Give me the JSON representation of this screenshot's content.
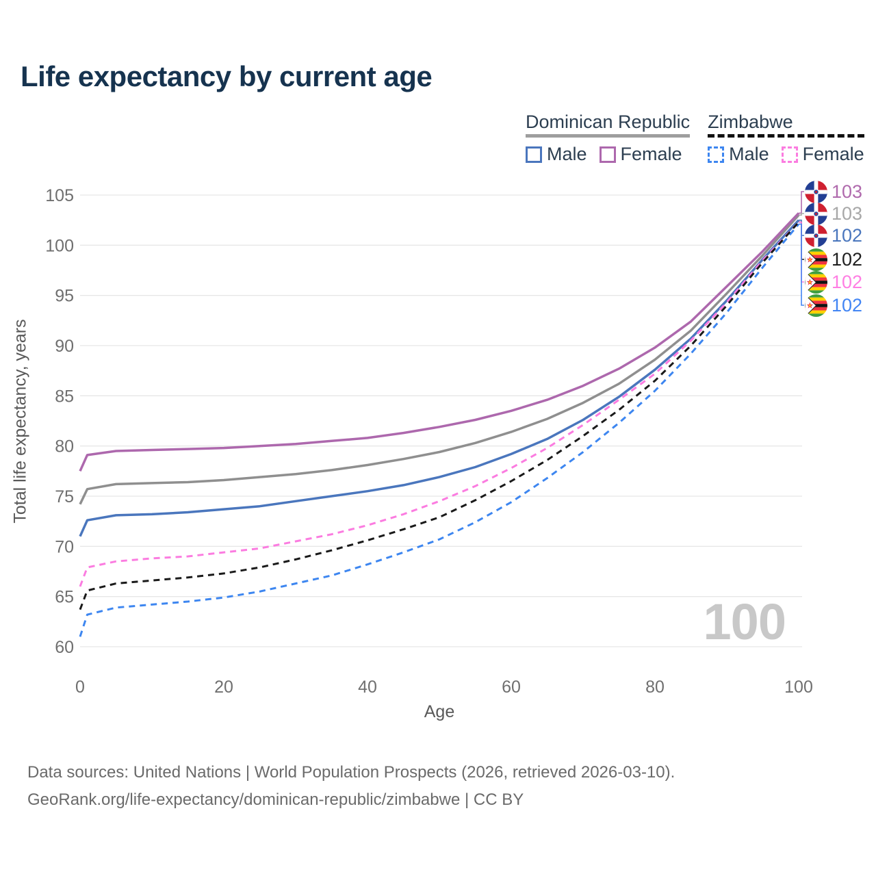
{
  "title": "Life expectancy by current age",
  "watermark": "100",
  "legend": {
    "dr": {
      "label": "Dominican Republic",
      "male": "Male",
      "female": "Female"
    },
    "zw": {
      "label": "Zimbabwe",
      "male": "Male",
      "female": "Female"
    }
  },
  "y_axis": {
    "label": "Total life expectancy, years",
    "ticks": [
      60,
      65,
      70,
      75,
      80,
      85,
      90,
      95,
      100,
      105
    ]
  },
  "x_axis": {
    "label": "Age",
    "ticks": [
      0,
      20,
      40,
      60,
      80,
      100
    ]
  },
  "annotations": [
    {
      "series": "dr_female",
      "flag": "dr",
      "value": "103",
      "color": "#b06aad"
    },
    {
      "series": "dr_both",
      "flag": "dr",
      "value": "103",
      "color": "#a8a8a8"
    },
    {
      "series": "dr_male",
      "flag": "dr",
      "value": "102",
      "color": "#4a76bd"
    },
    {
      "series": "zw_both",
      "flag": "zw",
      "value": "102",
      "color": "#1f1f1f"
    },
    {
      "series": "zw_female",
      "flag": "zw",
      "value": "102",
      "color": "#ff7ee3"
    },
    {
      "series": "zw_male",
      "flag": "zw",
      "value": "102",
      "color": "#4285f4"
    }
  ],
  "footer": {
    "line1": "Data sources: United Nations | World Population Prospects (2026, retrieved 2026-03-10).",
    "line2": "GeoRank.org/life-expectancy/dominican-republic/zimbabwe | CC BY"
  },
  "chart_data": {
    "type": "line",
    "title": "Life expectancy by current age",
    "xlabel": "Age",
    "ylabel": "Total life expectancy, years",
    "xlim": [
      0,
      100
    ],
    "ylim": [
      60,
      105
    ],
    "grid": true,
    "legend_position": "top-right",
    "x": [
      0,
      1,
      5,
      10,
      15,
      20,
      25,
      30,
      35,
      40,
      45,
      50,
      55,
      60,
      65,
      70,
      75,
      80,
      85,
      90,
      95,
      100
    ],
    "series": [
      {
        "key": "dr_male",
        "name": "Dominican Republic — Male",
        "country": "Dominican Republic",
        "sex": "male",
        "color": "#4a76bd",
        "dashed": false,
        "values": [
          71.0,
          72.6,
          73.1,
          73.2,
          73.4,
          73.7,
          74.0,
          74.5,
          75.0,
          75.5,
          76.1,
          76.9,
          77.9,
          79.2,
          80.7,
          82.6,
          84.9,
          87.6,
          90.7,
          94.5,
          98.6,
          102.5
        ]
      },
      {
        "key": "dr_both",
        "name": "Dominican Republic — Both sexes",
        "country": "Dominican Republic",
        "sex": "both",
        "color": "#8f8f8f",
        "dashed": false,
        "values": [
          74.2,
          75.7,
          76.2,
          76.3,
          76.4,
          76.6,
          76.9,
          77.2,
          77.6,
          78.1,
          78.7,
          79.4,
          80.3,
          81.4,
          82.7,
          84.3,
          86.2,
          88.6,
          91.5,
          95.2,
          99.0,
          103.0
        ]
      },
      {
        "key": "dr_female",
        "name": "Dominican Republic — Female",
        "country": "Dominican Republic",
        "sex": "female",
        "color": "#ad68ad",
        "dashed": false,
        "values": [
          77.5,
          79.1,
          79.5,
          79.6,
          79.7,
          79.8,
          80.0,
          80.2,
          80.5,
          80.8,
          81.3,
          81.9,
          82.6,
          83.5,
          84.6,
          86.0,
          87.7,
          89.8,
          92.4,
          95.9,
          99.4,
          103.2
        ]
      },
      {
        "key": "zw_male",
        "name": "Zimbabwe — Male",
        "country": "Zimbabwe",
        "sex": "male",
        "color": "#3d86f0",
        "dashed": true,
        "values": [
          61.0,
          63.2,
          63.9,
          64.2,
          64.5,
          64.9,
          65.5,
          66.3,
          67.1,
          68.2,
          69.4,
          70.7,
          72.4,
          74.4,
          76.8,
          79.4,
          82.3,
          85.5,
          89.2,
          93.3,
          97.8,
          102.1
        ]
      },
      {
        "key": "zw_female",
        "name": "Zimbabwe — Female",
        "country": "Zimbabwe",
        "sex": "female",
        "color": "#fb7ce0",
        "dashed": true,
        "values": [
          66.0,
          67.9,
          68.5,
          68.8,
          69.0,
          69.4,
          69.8,
          70.5,
          71.2,
          72.1,
          73.2,
          74.5,
          76.0,
          77.8,
          79.8,
          82.1,
          84.6,
          87.2,
          90.5,
          94.3,
          98.5,
          102.3
        ]
      },
      {
        "key": "zw_both",
        "name": "Zimbabwe — Both sexes",
        "country": "Zimbabwe",
        "sex": "both",
        "color": "#1a1a1a",
        "dashed": true,
        "values": [
          63.7,
          65.6,
          66.3,
          66.6,
          66.9,
          67.3,
          67.9,
          68.7,
          69.6,
          70.6,
          71.7,
          72.9,
          74.6,
          76.5,
          78.6,
          81.0,
          83.6,
          86.5,
          90.0,
          94.0,
          98.3,
          102.3
        ]
      }
    ]
  }
}
